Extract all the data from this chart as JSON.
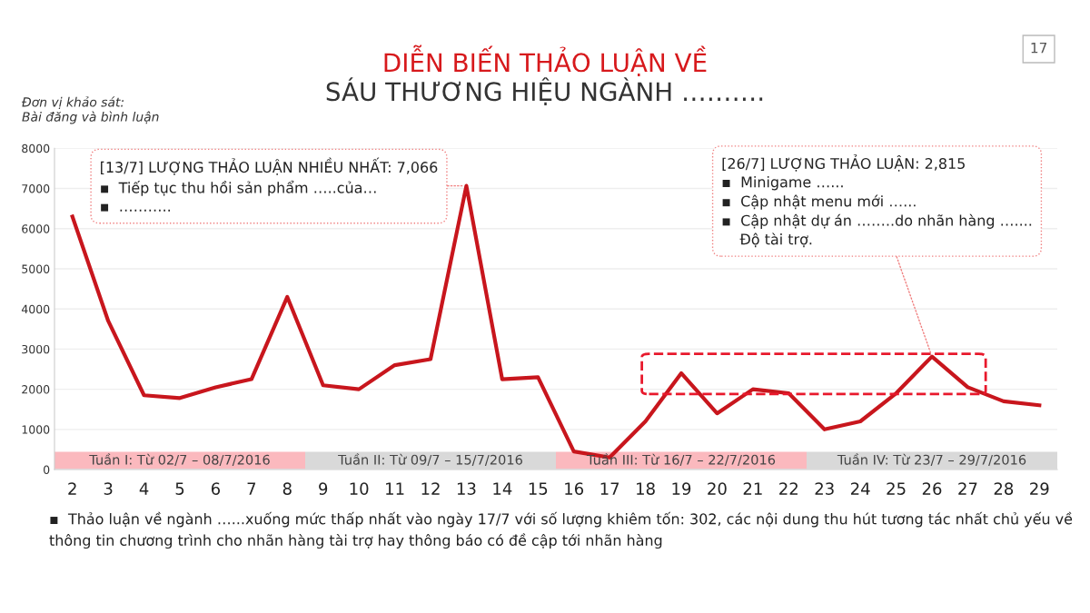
{
  "chart_data": {
    "type": "line",
    "title": "DIỄN BIẾN THẢO LUẬN VỀ",
    "subtitle": "SÁU THƯƠNG HIỆU NGÀNH ……….",
    "ylabel": "Đơn vị khảo sát:\nBài đăng và bình luận",
    "categories": [
      "2",
      "3",
      "4",
      "5",
      "6",
      "7",
      "8",
      "9",
      "10",
      "11",
      "12",
      "13",
      "14",
      "15",
      "16",
      "17",
      "18",
      "19",
      "20",
      "21",
      "22",
      "23",
      "24",
      "25",
      "26",
      "27",
      "28",
      "29"
    ],
    "series": [
      {
        "color": "#c8161d",
        "values": [
          6300,
          3700,
          1850,
          1780,
          2050,
          2250,
          4300,
          2100,
          2000,
          2600,
          2750,
          7066,
          2250,
          2300,
          450,
          302,
          1200,
          2400,
          1400,
          2000,
          1900,
          1000,
          1200,
          1900,
          2815,
          2050,
          1700,
          1600
        ]
      }
    ],
    "ylim": [
      0,
      8000
    ],
    "yticks": [
      0,
      1000,
      2000,
      3000,
      4000,
      5000,
      6000,
      7000,
      8000
    ],
    "grid": "y",
    "marker": "none",
    "line_style": "solid",
    "legend": false,
    "bands": [
      {
        "axis": "x",
        "from": "2",
        "to": "8",
        "label": "Tuần I: Từ 02/7 – 08/7/2016",
        "color": "#fbb9be"
      },
      {
        "axis": "x",
        "from": "9",
        "to": "15",
        "label": "Tuần II: Từ 09/7 – 15/7/2016",
        "color": "#d9d9d9"
      },
      {
        "axis": "x",
        "from": "16",
        "to": "22",
        "label": "Tuần III: Từ 16/7 – 22/7/2016",
        "color": "#fbb9be"
      },
      {
        "axis": "x",
        "from": "23",
        "to": "29",
        "label": "Tuần IV: Từ 23/7 – 29/7/2016",
        "color": "#d9d9d9"
      }
    ],
    "annotations": [
      {
        "text": "[13/7] LƯỢNG THẢO LUẬN NHIỀU NHẤT: 7,066\n▪  Tiếp tục thu hồi sản phẩm …..của…\n▪  ………..",
        "x": "13",
        "y": 7066
      },
      {
        "text": "[26/7] LƯỢNG THẢO LUẬN: 2,815\n▪  Minigame …...\n▪  Cập nhật menu mới …...\n▪  Cập nhật dự án ……..do nhãn hàng …....\n    Độ tài trợ.",
        "x": "26",
        "y": 2815
      },
      "17",
      "▪  Thảo luận về ngành …...xuống mức thấp nhất vào ngày 17/7 với số lượng khiêm tốn: 302, các nội dung thu hút tương tác nhất chủ yếu về thông tin chương trình cho nhãn hàng tài trợ hay thông báo có đề cập tới nhãn hàng"
    ]
  }
}
